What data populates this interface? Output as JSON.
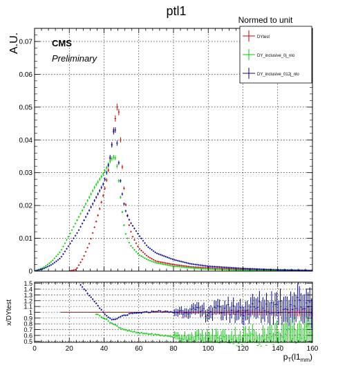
{
  "title": "ptl1",
  "subtitle": "Normed to unit",
  "cms_label": "CMS",
  "cms_sublabel": "Preliminary",
  "colors": {
    "DYtest": "#cc0000",
    "DY_inclusive_0j_nlo": "#00cc00",
    "DY_inclusive_012j_nlo": "#000099"
  },
  "chart_data": [
    {
      "type": "scatter",
      "ylabel": "A.U.",
      "xlim": [
        0,
        160
      ],
      "ylim": [
        0,
        0.074
      ],
      "grid": true,
      "x_ticks": [
        0,
        20,
        40,
        60,
        80,
        100,
        120,
        140,
        160
      ],
      "y_ticks": [
        0,
        0.01,
        0.02,
        0.03,
        0.04,
        0.05,
        0.06,
        0.07
      ],
      "y_tick_labels": [
        "0",
        "0.01",
        "0.02",
        "0.03",
        "0.04",
        "0.05",
        "0.06",
        "0.07"
      ],
      "legend": {
        "placement": "top-right",
        "entries": [
          "DYtest",
          "DY_inclusive_0j_nlo",
          "DY_inclusive_012j_nlo"
        ]
      },
      "series": [
        {
          "name": "DYtest",
          "x": [
            0,
            20,
            24,
            28,
            32,
            36,
            40,
            42,
            44,
            45,
            46,
            47,
            48,
            49,
            50,
            52,
            54,
            56,
            60,
            65,
            70,
            80,
            90,
            100,
            120,
            140,
            160
          ],
          "y": [
            0,
            0,
            0.0005,
            0.004,
            0.009,
            0.016,
            0.024,
            0.029,
            0.036,
            0.041,
            0.045,
            0.048,
            0.052,
            0.045,
            0.035,
            0.022,
            0.015,
            0.011,
            0.007,
            0.0045,
            0.003,
            0.002,
            0.0013,
            0.001,
            0.0005,
            0.0002,
            0.0001
          ]
        },
        {
          "name": "DY_inclusive_0j_nlo",
          "x": [
            0,
            5,
            10,
            15,
            20,
            25,
            30,
            35,
            40,
            42,
            44,
            46,
            47,
            48,
            50,
            52,
            55,
            60,
            65,
            70,
            80,
            90,
            100,
            120,
            140,
            160
          ],
          "y": [
            0,
            0.001,
            0.003,
            0.006,
            0.011,
            0.016,
            0.021,
            0.026,
            0.03,
            0.032,
            0.034,
            0.035,
            0.034,
            0.03,
            0.02,
            0.012,
            0.008,
            0.005,
            0.0035,
            0.0025,
            0.0015,
            0.001,
            0.0006,
            0.0003,
            0.0002,
            0.0001
          ]
        },
        {
          "name": "DY_inclusive_012j_nlo",
          "x": [
            0,
            5,
            10,
            15,
            20,
            25,
            30,
            35,
            40,
            42,
            44,
            45,
            46,
            47,
            48,
            49,
            50,
            52,
            55,
            60,
            65,
            70,
            80,
            90,
            100,
            120,
            140,
            160
          ],
          "y": [
            0,
            0.0007,
            0.002,
            0.004,
            0.008,
            0.012,
            0.017,
            0.022,
            0.027,
            0.031,
            0.036,
            0.041,
            0.044,
            0.042,
            0.036,
            0.03,
            0.025,
            0.019,
            0.015,
            0.011,
            0.0075,
            0.0055,
            0.0035,
            0.0022,
            0.0015,
            0.0008,
            0.0004,
            0.0002
          ]
        }
      ]
    },
    {
      "type": "scatter",
      "ylabel": "x/DYtest",
      "xlabel": "p_T(l1_mm)",
      "xlim": [
        0,
        160
      ],
      "ylim": [
        0.48,
        1.52
      ],
      "grid": true,
      "x_ticks": [
        0,
        20,
        40,
        60,
        80,
        100,
        120,
        140,
        160
      ],
      "y_ticks": [
        0.5,
        0.6,
        0.7,
        0.8,
        0.9,
        1,
        1.1,
        1.2,
        1.3,
        1.4,
        1.5
      ],
      "y_tick_labels": [
        "0.5",
        "0.6",
        "0.7",
        "0.8",
        "0.9",
        "1",
        "1.1",
        "1.2",
        "1.3",
        "1.4",
        "1.5"
      ],
      "series": [
        {
          "name": "DYtest",
          "x": [
            15,
            160
          ],
          "y": [
            1,
            1
          ]
        },
        {
          "name": "DY_inclusive_0j_nlo",
          "x": [
            35,
            40,
            45,
            50,
            55,
            60,
            65,
            70,
            80,
            90,
            100,
            110,
            120,
            130,
            140,
            150,
            160
          ],
          "y": [
            0.98,
            0.9,
            0.8,
            0.72,
            0.67,
            0.64,
            0.63,
            0.61,
            0.58,
            0.56,
            0.54,
            0.53,
            0.52,
            0.53,
            0.55,
            0.58,
            0.62
          ]
        },
        {
          "name": "DY_inclusive_012j_nlo",
          "x": [
            26,
            30,
            34,
            38,
            42,
            46,
            50,
            55,
            60,
            65,
            70,
            80,
            90,
            100,
            110,
            120,
            130,
            140,
            150,
            160
          ],
          "y": [
            1.5,
            1.35,
            1.2,
            1.05,
            0.92,
            0.86,
            0.93,
            0.97,
            0.99,
            1.0,
            1.02,
            1.0,
            1.03,
            1.0,
            1.05,
            1.02,
            1.08,
            1.1,
            1.12,
            1.15
          ]
        }
      ]
    }
  ]
}
